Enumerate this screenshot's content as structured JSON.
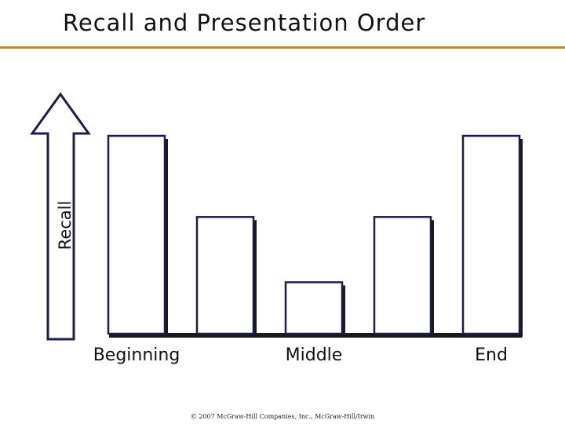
{
  "slide": {
    "title": "Recall and Presentation Order",
    "copyright": "© 2007 McGraw-Hill Companies, Inc., McGraw-Hill/Irwin"
  },
  "colors": {
    "rule": "#c8832a",
    "bar_outline": "#1b1d4d",
    "bar_shadow": "#1a1a1a",
    "bar_fill": "#ffffff",
    "arrow_outline": "#1b1d4d"
  },
  "chart_data": {
    "type": "bar",
    "categories": [
      "",
      "",
      "",
      "",
      ""
    ],
    "values": [
      100,
      59,
      26,
      59,
      100
    ],
    "ylabel": "Recall",
    "x_tick_labels": [
      "Beginning",
      "Middle",
      "End"
    ],
    "ylim": [
      0,
      100
    ],
    "grid": false,
    "legend": "none"
  }
}
